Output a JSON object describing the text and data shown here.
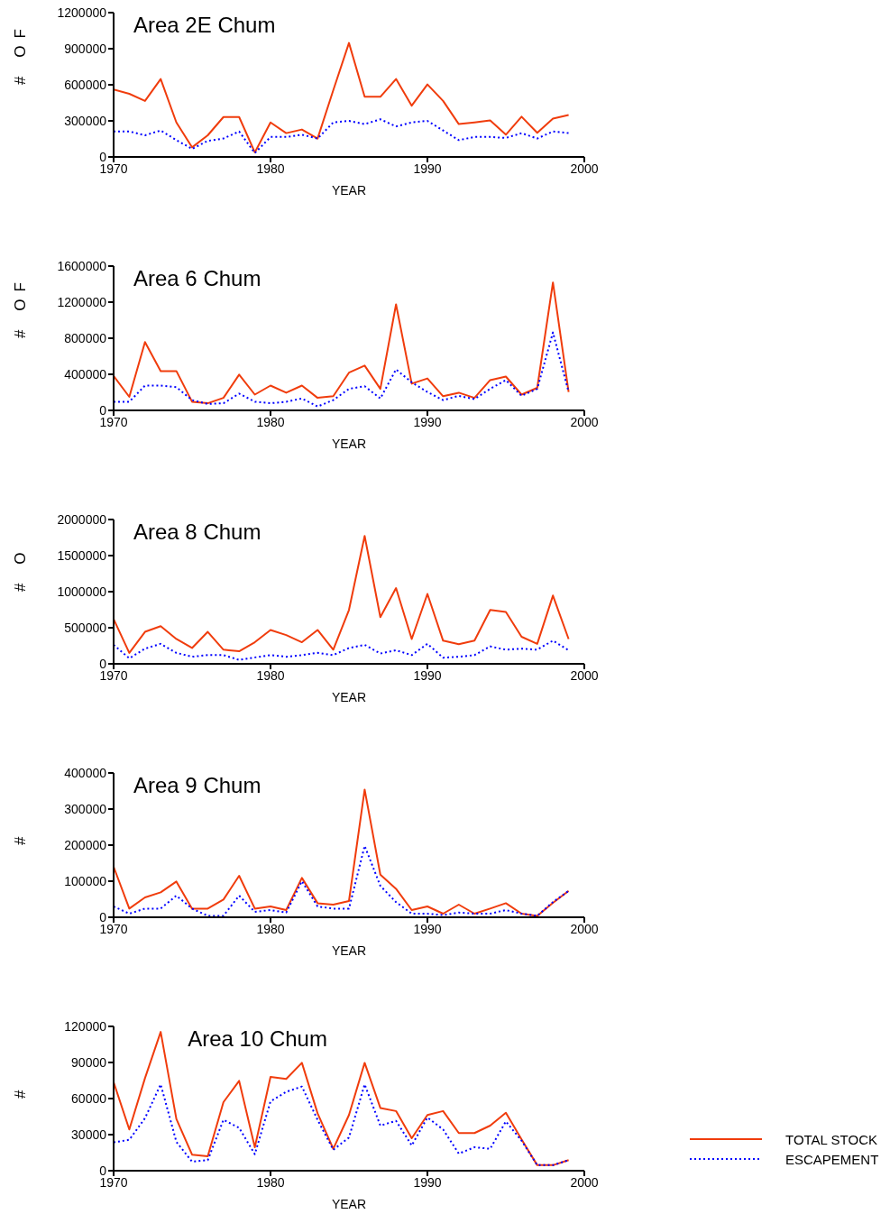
{
  "chart_data": [
    {
      "type": "line",
      "title": "Area 2E Chum",
      "xlabel": "YEAR",
      "ylabel": "# OF",
      "marker": "none",
      "xlim": [
        1970,
        2000
      ],
      "xticks": [
        1970,
        1980,
        1990,
        2000
      ],
      "ylim": [
        0,
        1200000
      ],
      "yticks": [
        0,
        300000,
        600000,
        900000,
        1200000
      ],
      "x": [
        1970,
        1971,
        1972,
        1973,
        1974,
        1975,
        1976,
        1977,
        1978,
        1979,
        1980,
        1981,
        1982,
        1983,
        1984,
        1985,
        1986,
        1987,
        1988,
        1989,
        1990,
        1991,
        1992,
        1993,
        1994,
        1995,
        1996,
        1997,
        1998,
        1999
      ],
      "series": [
        {
          "color": "#f03c0c",
          "line_style": "solid",
          "values": [
            560000,
            525000,
            466000,
            648000,
            287000,
            80000,
            180000,
            332000,
            332000,
            38000,
            287000,
            198000,
            228000,
            153000,
            555000,
            948000,
            500000,
            500000,
            648000,
            426000,
            603000,
            466000,
            273000,
            287000,
            303000,
            185000,
            335000,
            201000,
            319000,
            348000
          ]
        },
        {
          "color": "#0000ff",
          "line_style": "dotted",
          "values": [
            212000,
            212000,
            180000,
            220000,
            140000,
            67000,
            134000,
            153000,
            212000,
            32000,
            166000,
            166000,
            185000,
            153000,
            287000,
            300000,
            273000,
            313000,
            254000,
            287000,
            300000,
            220000,
            140000,
            166000,
            166000,
            158000,
            198000,
            153000,
            212000,
            198000
          ]
        }
      ]
    },
    {
      "type": "line",
      "title": "Area 6 Chum",
      "xlabel": "YEAR",
      "ylabel": "# OF",
      "marker": "none",
      "xlim": [
        1970,
        2000
      ],
      "xticks": [
        1970,
        1980,
        1990,
        2000
      ],
      "ylim": [
        0,
        1600000
      ],
      "yticks": [
        0,
        400000,
        800000,
        1200000,
        1600000
      ],
      "x": [
        1970,
        1971,
        1972,
        1973,
        1974,
        1975,
        1976,
        1977,
        1978,
        1979,
        1980,
        1981,
        1982,
        1983,
        1984,
        1985,
        1986,
        1987,
        1988,
        1989,
        1990,
        1991,
        1992,
        1993,
        1994,
        1995,
        1996,
        1997,
        1998,
        1999
      ],
      "series": [
        {
          "color": "#f03c0c",
          "line_style": "solid",
          "values": [
            382000,
            150000,
            757000,
            436000,
            436000,
            96000,
            79000,
            139000,
            396000,
            175000,
            275000,
            196000,
            275000,
            139000,
            157000,
            418000,
            496000,
            239000,
            1175000,
            296000,
            354000,
            157000,
            196000,
            139000,
            336000,
            375000,
            175000,
            250000,
            1418000,
            204000
          ]
        },
        {
          "color": "#0000ff",
          "line_style": "dotted",
          "values": [
            96000,
            96000,
            275000,
            275000,
            257000,
            114000,
            71000,
            79000,
            186000,
            96000,
            79000,
            96000,
            132000,
            43000,
            114000,
            239000,
            268000,
            132000,
            454000,
            311000,
            204000,
            114000,
            161000,
            125000,
            239000,
            336000,
            161000,
            239000,
            864000,
            204000
          ]
        }
      ]
    },
    {
      "type": "line",
      "title": "Area 8 Chum",
      "xlabel": "YEAR",
      "ylabel": "# O",
      "marker": "none",
      "xlim": [
        1970,
        2000
      ],
      "xticks": [
        1970,
        1980,
        1990,
        2000
      ],
      "ylim": [
        0,
        2000000
      ],
      "yticks": [
        0,
        500000,
        1000000,
        1500000,
        2000000
      ],
      "x": [
        1970,
        1971,
        1972,
        1973,
        1974,
        1975,
        1976,
        1977,
        1978,
        1979,
        1980,
        1981,
        1982,
        1983,
        1984,
        1985,
        1986,
        1987,
        1988,
        1989,
        1990,
        1991,
        1992,
        1993,
        1994,
        1995,
        1996,
        1997,
        1998,
        1999
      ],
      "series": [
        {
          "color": "#f03c0c",
          "line_style": "solid",
          "values": [
            621000,
            152000,
            443000,
            522000,
            344000,
            219000,
            443000,
            196000,
            174000,
            299000,
            469000,
            398000,
            299000,
            469000,
            196000,
            746000,
            1772000,
            647000,
            1049000,
            344000,
            969000,
            321000,
            272000,
            321000,
            746000,
            719000,
            375000,
            277000,
            946000,
            344000
          ]
        },
        {
          "color": "#0000ff",
          "line_style": "dotted",
          "values": [
            263000,
            76000,
            210000,
            277000,
            152000,
            98000,
            121000,
            121000,
            54000,
            89000,
            121000,
            98000,
            121000,
            152000,
            121000,
            219000,
            263000,
            143000,
            188000,
            121000,
            277000,
            85000,
            98000,
            121000,
            241000,
            196000,
            210000,
            196000,
            321000,
            188000
          ]
        }
      ]
    },
    {
      "type": "line",
      "title": "Area 9 Chum",
      "xlabel": "YEAR",
      "ylabel": "#",
      "marker": "none",
      "xlim": [
        1970,
        2000
      ],
      "xticks": [
        1970,
        1980,
        1990,
        2000
      ],
      "ylim": [
        0,
        400000
      ],
      "yticks": [
        0,
        100000,
        200000,
        300000,
        400000
      ],
      "x": [
        1970,
        1971,
        1972,
        1973,
        1974,
        1975,
        1976,
        1977,
        1978,
        1979,
        1980,
        1981,
        1982,
        1983,
        1984,
        1985,
        1986,
        1987,
        1988,
        1989,
        1990,
        1991,
        1992,
        1993,
        1994,
        1995,
        1996,
        1997,
        1998,
        1999
      ],
      "series": [
        {
          "color": "#f03c0c",
          "line_style": "solid",
          "values": [
            140000,
            24000,
            55000,
            69000,
            99000,
            24000,
            24000,
            49000,
            115000,
            24000,
            30000,
            20000,
            109000,
            39000,
            35000,
            45000,
            354000,
            118000,
            79000,
            20000,
            30000,
            10000,
            35000,
            10000,
            24000,
            39000,
            10000,
            4000,
            40000,
            73000
          ]
        },
        {
          "color": "#0000ff",
          "line_style": "dotted",
          "values": [
            30000,
            10000,
            24000,
            24000,
            60000,
            24000,
            4000,
            4000,
            60000,
            15000,
            20000,
            13000,
            100000,
            30000,
            24000,
            24000,
            198000,
            87000,
            42000,
            10000,
            10000,
            6000,
            13000,
            10000,
            10000,
            20000,
            10000,
            4000,
            42000,
            73000
          ]
        }
      ]
    },
    {
      "type": "line",
      "title": "Area 10 Chum",
      "xlabel": "YEAR",
      "ylabel": "#",
      "marker": "none",
      "legend": "bottom right",
      "xlim": [
        1970,
        2000
      ],
      "xticks": [
        1970,
        1980,
        1990,
        2000
      ],
      "ylim": [
        0,
        120000
      ],
      "yticks": [
        0,
        30000,
        60000,
        90000,
        120000
      ],
      "x": [
        1970,
        1971,
        1972,
        1973,
        1974,
        1975,
        1976,
        1977,
        1978,
        1979,
        1980,
        1981,
        1982,
        1983,
        1984,
        1985,
        1986,
        1987,
        1988,
        1989,
        1990,
        1991,
        1992,
        1993,
        1994,
        1995,
        1996,
        1997,
        1998,
        1999
      ],
      "series": [
        {
          "name": "TOTAL STOCK",
          "color": "#f03c0c",
          "line_style": "solid",
          "values": [
            73700,
            34300,
            77000,
            115400,
            43000,
            13400,
            12000,
            57000,
            74700,
            19500,
            78000,
            76300,
            89700,
            47700,
            18200,
            46300,
            89700,
            52200,
            49600,
            27000,
            46300,
            49600,
            31300,
            31300,
            37500,
            48200,
            26000,
            4600,
            4600,
            8800
          ]
        },
        {
          "name": "ESCAPEMENT",
          "color": "#0000ff",
          "line_style": "dotted",
          "values": [
            23600,
            25700,
            43700,
            71800,
            24000,
            7500,
            8800,
            42300,
            35600,
            13700,
            57600,
            65600,
            70000,
            42300,
            17400,
            27600,
            71800,
            37500,
            41500,
            21000,
            44200,
            34300,
            14200,
            19500,
            18200,
            41000,
            25000,
            4600,
            4600,
            8800
          ]
        }
      ]
    }
  ]
}
